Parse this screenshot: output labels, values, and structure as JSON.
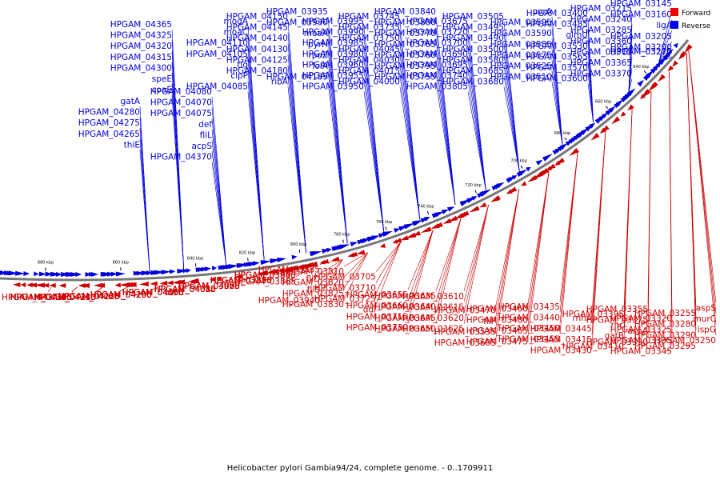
{
  "caption": "Helicobacter pylori Gambia94/24, complete genome. - 0..1709911",
  "legend": [
    {
      "label": "Forward",
      "color": "#ee0000"
    },
    {
      "label": "Reverse",
      "color": "#0000ee"
    }
  ],
  "colors": {
    "forward": "#cc0000",
    "reverse": "#0000dd",
    "backbone": "#777777"
  },
  "ticks": [
    "640 kbp",
    "660 kbp",
    "680 kbp",
    "700 kbp",
    "720 kbp",
    "740 kbp",
    "760 kbp",
    "780 kbp",
    "800 kbp",
    "820 kbp",
    "840 kbp",
    "860 kbp",
    "880 kbp"
  ],
  "reverse_labels": [
    "HPGAM_03145",
    "HPGAM_03160",
    "ligA",
    "HPGAM_03205",
    "HPGAM_03200",
    "HPGAM_03275",
    "HPGAM_03270",
    "HPGAM_03215",
    "HPGAM_03240",
    "HPGAM_03285",
    "HPGAM_03360",
    "HPGAM_03315",
    "HPGAM_03365",
    "HPGAM_03370",
    "HPGAM_03400",
    "HPGAM_03485",
    "glmU",
    "HPGAM_03530",
    "HPGAM_03565",
    "HPGAM_03570",
    "HPGAM_03600",
    "uvrA",
    "HPGAM_03595",
    "HPGAM_03590",
    "HPGAM_03585",
    "HPGAM_03575",
    "HPGAM_03525",
    "HPGAM_03510",
    "HPGAM_03505",
    "HPGAM_03495",
    "HPGAM_03490",
    "HPGAM_03500",
    "HPGAM_03580",
    "HPGAM_03685",
    "HPGAM_03680",
    "HPGAM_03675",
    "HPGAM_03720",
    "HPGAM_03700",
    "HPGAM_03690",
    "HPGAM_03695",
    "HPGAM_03740",
    "HPGAM_03805",
    "HPGAM_03840",
    "HPGAM_03800",
    "HPGAM_03770",
    "HPGAM_03765",
    "HPGAM_03760",
    "HPGAM_03795",
    "HPGAM_03755",
    "HPGAM_03745",
    "HPGAM_03735",
    "HPGAM_03750",
    "HPGAM_04045",
    "HPGAM_04030",
    "HPGAM_04015",
    "HPGAM_04000",
    "HPGAM_03995",
    "HPGAM_03990",
    "HPGAM_03985",
    "HPGAM_03980",
    "HPGAM_03960",
    "HPGAM_03955",
    "HPGAM_03950",
    "HPGAM_03935",
    "HPGAM_03930",
    "moaA",
    "pyrH",
    "rpoZ",
    "lolA",
    "HPGAM_04185",
    "HPGAM_04150",
    "HPGAM_04145",
    "HPGAM_04140",
    "HPGAM_04130",
    "HPGAM_04125",
    "HPGAM_04180",
    "ribA",
    "mogA",
    "moaC",
    "HPGAM_04110",
    "HPGAM_04105",
    "tig",
    "clpP",
    "HPGAM_04085",
    "HPGAM_04080",
    "HPGAM_04070",
    "HPGAM_04075",
    "def",
    "fliL",
    "acpS",
    "HPGAM_04370",
    "HPGAM_04365",
    "HPGAM_04325",
    "HPGAM_04320",
    "HPGAM_04315",
    "HPGAM_04300",
    "speE",
    "coaE",
    "gatA",
    "HPGAM_04280",
    "HPGAM_04275",
    "HPGAM_04265",
    "thiE"
  ],
  "forward_labels": [
    "aspS",
    "murC",
    "ispG",
    "HPGAM_03250",
    "HPGAM_03255",
    "HPGAM_03280",
    "HPGAM_03290",
    "HPGAM_03295",
    "HPGAM_03320",
    "HPGAM_03325",
    "HPGAM_03335",
    "HPGAM_03345",
    "HPGAM_03355",
    "HPGAM_03375",
    "aspA",
    "HPGAM_03390",
    "HPGAM_03395",
    "rnc",
    "gatB",
    "HPGAM_03410",
    "rnhA",
    "HPGAM_03445",
    "HPGAM_03415",
    "HPGAM_03430",
    "HPGAM_03435",
    "HPGAM_03440",
    "HPGAM_03450",
    "HPGAM_03455",
    "HPGAM_03460",
    "HPGAM_03480",
    "HPGAM_03465",
    "HPGAM_03475",
    "HPGAM_03470",
    "fliP",
    "HPGAM_03535",
    "HPGAM_03605",
    "HPGAM_03610",
    "HPGAM_03615",
    "HPGAM_03620",
    "HPGAM_03625",
    "HPGAM_03635",
    "HPGAM_03640",
    "HPGAM_03645",
    "HPGAM_03650",
    "HPGAM_03655",
    "HPGAM_03660",
    "HPGAM_03715",
    "HPGAM_03730",
    "HPGAM_03705",
    "HPGAM_03710",
    "HPGAM_03725",
    "ddl",
    "HPGAM_03810",
    "HPGAM_03820",
    "HPGAM_03825",
    "HPGAM_03830",
    "HPGAM_03835",
    "fliD",
    "fliS",
    "HPGAM_03940",
    "HPGAM_03945",
    "HPGAM_03855",
    "HPGAM_03860",
    "HPGAM_03865",
    "HPGAM_03870",
    "HPGAM_03875",
    "HPGAM_03880",
    "HPGAM_03885",
    "HPGAM_03900",
    "HPGAM_03970",
    "flhB",
    "HPGAM_04035",
    "HPGAM_04040",
    "HPGAM_04055",
    "HPGAM_04020",
    "HPGAM_04025",
    "HPGAM_04060",
    "HPGAM_04065",
    "HPGAM_04155",
    "uvrC",
    "HPGAM_04190",
    "HPGAM_04195",
    "HPGAM_04200",
    "HPGAM_04205",
    "motB",
    "HPGAM_04215",
    "HPGAM_04220",
    "HPGAM_04225",
    "HPGAM_04230",
    "HPGAM_04240",
    "HPGAM_04245",
    "HPGAM_04310",
    "HPGAM_04305",
    "HPGAM_04330",
    "HPGAM_04335",
    "HPGAM_04340",
    "HPGAM_04345"
  ]
}
